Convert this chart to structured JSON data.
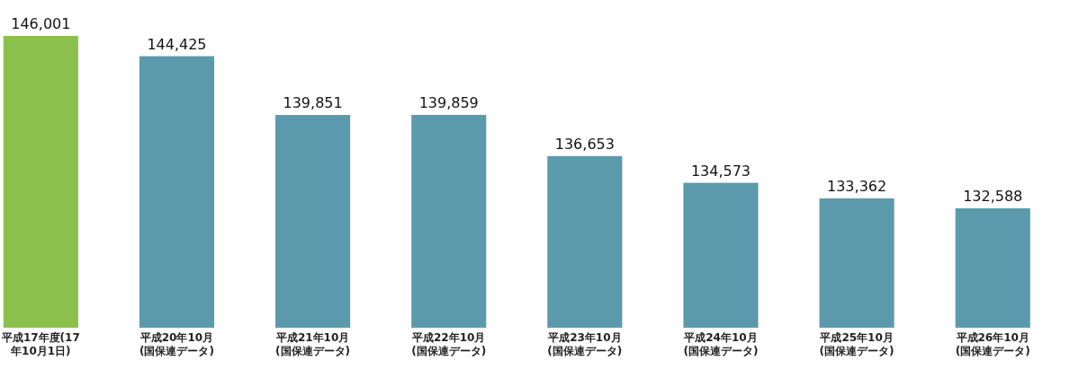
{
  "chart_data": {
    "type": "bar",
    "categories": [
      "平成17年度(17年10月1日)",
      "平成20年10月(国保連データ)",
      "平成21年10月(国保連データ)",
      "平成22年10月(国保連データ)",
      "平成23年10月(国保連データ)",
      "平成24年10月(国保連データ)",
      "平成25年10月(国保連データ)",
      "平成26年10月(国保連データ)"
    ],
    "values": [
      146001,
      144425,
      139851,
      139859,
      136653,
      134573,
      133362,
      132588
    ],
    "colors": [
      "#8cc04c",
      "#5b9aad",
      "#5b9aad",
      "#5b9aad",
      "#5b9aad",
      "#5b9aad",
      "#5b9aad",
      "#5b9aad"
    ],
    "value_labels": [
      "146,001",
      "144,425",
      "139,851",
      "139,859",
      "136,653",
      "134,573",
      "133,362",
      "132,588"
    ],
    "ylim": [
      123300,
      146001
    ]
  }
}
